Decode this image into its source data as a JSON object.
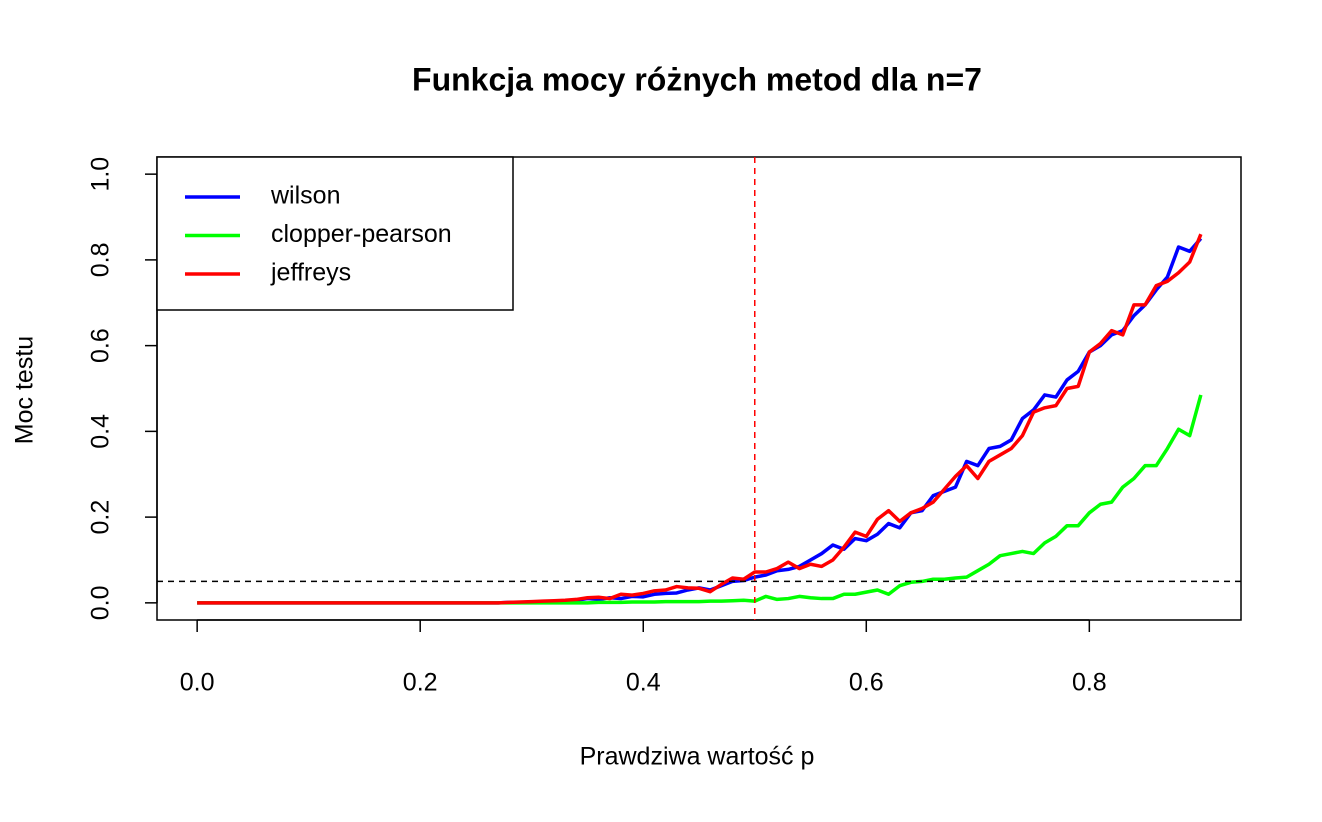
{
  "chart_data": {
    "type": "line",
    "title": "Funkcja mocy różnych metod dla n=7",
    "xlabel": "Prawdziwa wartość p",
    "ylabel": "Moc testu",
    "x": [
      0,
      0.01,
      0.02,
      0.03,
      0.04,
      0.05,
      0.06,
      0.07,
      0.08,
      0.09,
      0.1,
      0.11,
      0.12,
      0.13,
      0.14,
      0.15,
      0.16,
      0.17,
      0.18,
      0.19,
      0.2,
      0.21,
      0.22,
      0.23,
      0.24,
      0.25,
      0.26,
      0.27,
      0.28,
      0.29,
      0.3,
      0.31,
      0.32,
      0.33,
      0.34,
      0.35,
      0.36,
      0.37,
      0.38,
      0.39,
      0.4,
      0.41,
      0.42,
      0.43,
      0.44,
      0.45,
      0.46,
      0.47,
      0.48,
      0.49,
      0.5,
      0.51,
      0.52,
      0.53,
      0.54,
      0.55,
      0.56,
      0.57,
      0.58,
      0.59,
      0.6,
      0.61,
      0.62,
      0.63,
      0.64,
      0.65,
      0.66,
      0.67,
      0.68,
      0.69,
      0.7,
      0.71,
      0.72,
      0.73,
      0.74,
      0.75,
      0.76,
      0.77,
      0.78,
      0.79,
      0.8,
      0.81,
      0.82,
      0.83,
      0.84,
      0.85,
      0.86,
      0.87,
      0.88,
      0.89,
      0.9
    ],
    "series": [
      {
        "name": "wilson",
        "color": "#0000ff",
        "values": [
          0,
          0,
          0,
          0,
          0,
          0,
          0,
          0,
          0,
          0,
          0,
          0,
          0,
          0,
          0,
          0,
          0,
          0,
          0,
          0,
          0,
          0,
          0,
          0,
          0,
          0,
          0,
          0,
          0.001,
          0.001,
          0.002,
          0.003,
          0.003,
          0.004,
          0.006,
          0.01,
          0.008,
          0.012,
          0.01,
          0.015,
          0.014,
          0.02,
          0.022,
          0.023,
          0.03,
          0.035,
          0.03,
          0.04,
          0.05,
          0.052,
          0.06,
          0.065,
          0.075,
          0.078,
          0.085,
          0.1,
          0.115,
          0.135,
          0.125,
          0.15,
          0.145,
          0.16,
          0.185,
          0.175,
          0.21,
          0.215,
          0.25,
          0.26,
          0.27,
          0.33,
          0.32,
          0.36,
          0.365,
          0.38,
          0.43,
          0.45,
          0.485,
          0.48,
          0.52,
          0.54,
          0.585,
          0.6,
          0.625,
          0.635,
          0.67,
          0.695,
          0.73,
          0.76,
          0.83,
          0.82,
          0.85
        ]
      },
      {
        "name": "clopper-pearson",
        "color": "#00ff00",
        "values": [
          0,
          0,
          0,
          0,
          0,
          0,
          0,
          0,
          0,
          0,
          0,
          0,
          0,
          0,
          0,
          0,
          0,
          0,
          0,
          0,
          0,
          0,
          0,
          0,
          0,
          0,
          0,
          0,
          0,
          0,
          0,
          0,
          0,
          0,
          0,
          0,
          0.001,
          0.001,
          0.001,
          0.002,
          0.002,
          0.002,
          0.003,
          0.003,
          0.003,
          0.003,
          0.004,
          0.004,
          0.005,
          0.006,
          0.004,
          0.015,
          0.008,
          0.01,
          0.015,
          0.012,
          0.01,
          0.01,
          0.02,
          0.02,
          0.025,
          0.03,
          0.02,
          0.04,
          0.048,
          0.05,
          0.055,
          0.055,
          0.058,
          0.06,
          0.075,
          0.09,
          0.11,
          0.115,
          0.12,
          0.115,
          0.14,
          0.155,
          0.18,
          0.18,
          0.21,
          0.23,
          0.235,
          0.27,
          0.29,
          0.32,
          0.32,
          0.36,
          0.405,
          0.39,
          0.485
        ]
      },
      {
        "name": "jeffreys",
        "color": "#ff0000",
        "values": [
          0,
          0,
          0,
          0,
          0,
          0,
          0,
          0,
          0,
          0,
          0,
          0,
          0,
          0,
          0,
          0,
          0,
          0,
          0,
          0,
          0,
          0,
          0,
          0,
          0,
          0,
          0,
          0,
          0.001,
          0.002,
          0.003,
          0.004,
          0.005,
          0.006,
          0.008,
          0.012,
          0.013,
          0.01,
          0.02,
          0.018,
          0.022,
          0.028,
          0.03,
          0.038,
          0.035,
          0.034,
          0.026,
          0.043,
          0.058,
          0.055,
          0.072,
          0.072,
          0.08,
          0.095,
          0.08,
          0.09,
          0.085,
          0.1,
          0.13,
          0.165,
          0.155,
          0.195,
          0.215,
          0.19,
          0.21,
          0.22,
          0.235,
          0.265,
          0.295,
          0.32,
          0.29,
          0.33,
          0.345,
          0.36,
          0.39,
          0.445,
          0.455,
          0.46,
          0.5,
          0.505,
          0.585,
          0.605,
          0.635,
          0.625,
          0.695,
          0.695,
          0.74,
          0.75,
          0.77,
          0.795,
          0.86
        ]
      }
    ],
    "hline": 0.05,
    "vline": 0.5,
    "xlim": [
      -0.036,
      0.936
    ],
    "ylim": [
      -0.04,
      1.04
    ],
    "xticks": [
      {
        "value": 0,
        "label": "0.0"
      },
      0.2,
      0.4,
      0.6,
      0.8
    ],
    "yticks": [
      {
        "value": 0,
        "label": "0.0"
      },
      0.2,
      0.4,
      0.6,
      0.8,
      {
        "value": 1,
        "label": "1.0"
      }
    ],
    "legend": "top-left"
  }
}
